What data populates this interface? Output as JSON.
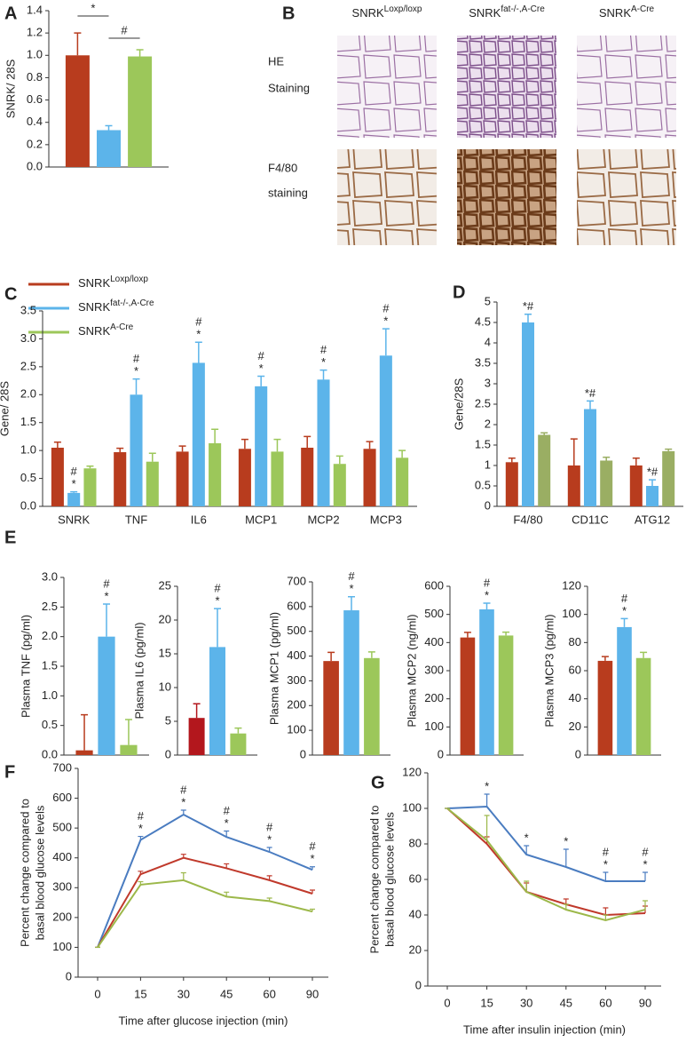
{
  "legend": [
    {
      "text": "SNRK",
      "sup": "Loxp/loxp",
      "color": "#b83c1e"
    },
    {
      "text": "SNRK",
      "sup": "fat-/-,A-Cre",
      "color": "#5cb4ea"
    },
    {
      "text": "SNRK",
      "sup": "A-Cre",
      "color": "#9cc75a"
    }
  ],
  "panel_b": {
    "label": "B",
    "columns": [
      {
        "text": "SNRK",
        "sup": "Loxp/loxp"
      },
      {
        "text": "SNRK",
        "sup": "fat-/-,A-Cre"
      },
      {
        "text": "SNRK",
        "sup": "A-Cre"
      }
    ],
    "rows": [
      [
        "HE",
        "Staining"
      ],
      [
        "F4/80",
        "staining"
      ]
    ]
  },
  "chart_data": [
    {
      "type": "bar",
      "label": "A",
      "ylabel": [
        "SNRK/ 28S"
      ],
      "categories": [
        null
      ],
      "ylim": [
        0,
        1.4
      ],
      "yticks": [
        {
          "value": 0,
          "label": "0.0"
        },
        0.2,
        0.4,
        0.6,
        0.8,
        {
          "value": 1,
          "label": "1.0"
        },
        1.2,
        1.4
      ],
      "series": [
        {
          "color": "#b83c1e",
          "values": [
            1.0
          ],
          "errors": [
            0.2
          ]
        },
        {
          "color": "#5cb4ea",
          "values": [
            0.33
          ],
          "errors": [
            0.04
          ]
        },
        {
          "color": "#9cc75a",
          "values": [
            0.99
          ],
          "errors": [
            0.06
          ]
        }
      ],
      "brackets": [
        {
          "text": "*",
          "from": 0,
          "to": 1
        },
        {
          "text": "#",
          "from": 1,
          "to": 2
        }
      ]
    },
    {
      "type": "bar",
      "label": "C",
      "ylabel": [
        "Gene/ 28S"
      ],
      "categories": [
        "SNRK",
        "TNF",
        "IL6",
        "MCP1",
        "MCP2",
        "MCP3"
      ],
      "ylim": [
        0,
        3.5
      ],
      "yticks": [
        {
          "value": 0,
          "label": "0.0"
        },
        0.5,
        {
          "value": 1,
          "label": "1.0"
        },
        1.5,
        {
          "value": 2,
          "label": "2.0"
        },
        2.5,
        {
          "value": 3,
          "label": "3.0"
        },
        3.5
      ],
      "series": [
        {
          "color": "#b83c1e",
          "values": [
            1.05,
            0.97,
            0.98,
            1.03,
            1.05,
            1.03
          ],
          "errors": [
            0.1,
            0.07,
            0.1,
            0.17,
            0.2,
            0.13
          ]
        },
        {
          "color": "#5cb4ea",
          "values": [
            0.24,
            2.0,
            2.57,
            2.15,
            2.27,
            2.7
          ],
          "errors": [
            0.02,
            0.28,
            0.37,
            0.18,
            0.17,
            0.48
          ]
        },
        {
          "color": "#9cc75a",
          "values": [
            0.68,
            0.8,
            1.13,
            0.98,
            0.76,
            0.87
          ],
          "errors": [
            0.04,
            0.15,
            0.25,
            0.22,
            0.14,
            0.13
          ]
        }
      ],
      "annotations": [
        {
          "series": 1,
          "index": 0,
          "lines": [
            "#",
            "*"
          ]
        },
        {
          "series": 1,
          "index": 1,
          "lines": [
            "#",
            "*"
          ]
        },
        {
          "series": 1,
          "index": 2,
          "lines": [
            "#",
            "*"
          ]
        },
        {
          "series": 1,
          "index": 3,
          "lines": [
            "#",
            "*"
          ]
        },
        {
          "series": 1,
          "index": 4,
          "lines": [
            "#",
            "*"
          ]
        },
        {
          "series": 1,
          "index": 5,
          "lines": [
            "#",
            "*"
          ]
        }
      ]
    },
    {
      "type": "bar",
      "label": "D",
      "ylabel": [
        "Gene/28S"
      ],
      "categories": [
        "F4/80",
        "CD11C",
        "ATG12"
      ],
      "ylim": [
        0,
        5
      ],
      "yticks": [
        0,
        0.5,
        1,
        1.5,
        2,
        2.5,
        3,
        3.5,
        4,
        4.5,
        5
      ],
      "series": [
        {
          "color": "#b83c1e",
          "values": [
            1.08,
            1.0,
            1.0
          ],
          "errors": [
            0.1,
            0.65,
            0.18
          ]
        },
        {
          "color": "#5cb4ea",
          "values": [
            4.5,
            2.38,
            0.5
          ],
          "errors": [
            0.2,
            0.2,
            0.15
          ]
        },
        {
          "color": "#9aae63",
          "values": [
            1.75,
            1.12,
            1.35
          ],
          "errors": [
            0.05,
            0.08,
            0.05
          ]
        }
      ],
      "annotations": [
        {
          "series": 1,
          "index": 0,
          "lines": [
            "*#"
          ]
        },
        {
          "series": 1,
          "index": 1,
          "lines": [
            "*#"
          ]
        },
        {
          "series": 1,
          "index": 2,
          "lines": [
            "*#"
          ]
        }
      ]
    },
    {
      "type": "bar",
      "label": "E",
      "ylabel": [
        "Plasma TNF (pg/ml)"
      ],
      "categories": [
        null
      ],
      "ylim": [
        0,
        3
      ],
      "yticks": [
        {
          "value": 0,
          "label": "0.0"
        },
        0.5,
        {
          "value": 1,
          "label": "1.0"
        },
        1.5,
        {
          "value": 2,
          "label": "2.0"
        },
        2.5,
        {
          "value": 3,
          "label": "3.0"
        }
      ],
      "series": [
        {
          "color": "#b83c1e",
          "values": [
            0.08
          ],
          "errors": [
            0.6
          ]
        },
        {
          "color": "#5cb4ea",
          "values": [
            2.0
          ],
          "errors": [
            0.55
          ]
        },
        {
          "color": "#9cc75a",
          "values": [
            0.17
          ],
          "errors": [
            0.43
          ]
        }
      ],
      "annotations": [
        {
          "series": 1,
          "index": 0,
          "lines": [
            "#",
            "*"
          ]
        }
      ]
    },
    {
      "type": "bar",
      "ylabel": [
        "Plasma IL6 (pg/ml)"
      ],
      "categories": [
        null
      ],
      "ylim": [
        0,
        25
      ],
      "yticks": [
        0,
        5,
        10,
        15,
        20,
        25
      ],
      "series": [
        {
          "color": "#b3171d",
          "values": [
            5.5
          ],
          "errors": [
            2.1
          ]
        },
        {
          "color": "#5cb4ea",
          "values": [
            16
          ],
          "errors": [
            5.7
          ]
        },
        {
          "color": "#9cc75a",
          "values": [
            3.2
          ],
          "errors": [
            0.8
          ]
        }
      ],
      "annotations": [
        {
          "series": 1,
          "index": 0,
          "lines": [
            "#",
            "*"
          ]
        }
      ]
    },
    {
      "type": "bar",
      "ylabel": [
        "Plasma MCP1 (pg/ml)"
      ],
      "categories": [
        null
      ],
      "ylim": [
        0,
        700
      ],
      "yticks": [
        0,
        100,
        200,
        300,
        400,
        500,
        600,
        700
      ],
      "series": [
        {
          "color": "#b83c1e",
          "values": [
            380
          ],
          "errors": [
            35
          ]
        },
        {
          "color": "#5cb4ea",
          "values": [
            585
          ],
          "errors": [
            55
          ]
        },
        {
          "color": "#9cc75a",
          "values": [
            392
          ],
          "errors": [
            25
          ]
        }
      ],
      "annotations": [
        {
          "series": 1,
          "index": 0,
          "lines": [
            "#",
            "*"
          ]
        }
      ]
    },
    {
      "type": "bar",
      "ylabel": [
        "Plasma MCP2 (ng/ml)"
      ],
      "categories": [
        null
      ],
      "ylim": [
        0,
        600
      ],
      "yticks": [
        0,
        100,
        200,
        300,
        400,
        500,
        600
      ],
      "series": [
        {
          "color": "#b83c1e",
          "values": [
            418
          ],
          "errors": [
            18
          ]
        },
        {
          "color": "#5cb4ea",
          "values": [
            518
          ],
          "errors": [
            22
          ]
        },
        {
          "color": "#9cc75a",
          "values": [
            425
          ],
          "errors": [
            12
          ]
        }
      ],
      "annotations": [
        {
          "series": 1,
          "index": 0,
          "lines": [
            "#",
            "*"
          ]
        }
      ]
    },
    {
      "type": "bar",
      "ylabel": [
        "Plasma MCP3 (pg/ml)"
      ],
      "categories": [
        null
      ],
      "ylim": [
        0,
        120
      ],
      "yticks": [
        0,
        20,
        40,
        60,
        80,
        100,
        120
      ],
      "series": [
        {
          "color": "#b83c1e",
          "values": [
            67
          ],
          "errors": [
            3
          ]
        },
        {
          "color": "#5cb4ea",
          "values": [
            91
          ],
          "errors": [
            6
          ]
        },
        {
          "color": "#9cc75a",
          "values": [
            69
          ],
          "errors": [
            4
          ]
        }
      ],
      "annotations": [
        {
          "series": 1,
          "index": 0,
          "lines": [
            "#",
            "*"
          ]
        }
      ]
    },
    {
      "type": "line",
      "label": "F",
      "ylabel": [
        "Percent change compared to",
        "basal blood glucose levels"
      ],
      "xlabel": "Time after glucose injection (min)",
      "categories": [
        "0",
        "15",
        "30",
        "45",
        "60",
        "90"
      ],
      "ylim": [
        0,
        700
      ],
      "yticks": [
        0,
        100,
        200,
        300,
        400,
        500,
        600,
        700
      ],
      "series": [
        {
          "color": "#4a7cc0",
          "values": [
            100,
            460,
            545,
            470,
            420,
            360
          ],
          "errors": [
            0,
            12,
            15,
            20,
            15,
            10
          ]
        },
        {
          "color": "#c0392b",
          "values": [
            100,
            345,
            400,
            365,
            325,
            280
          ],
          "errors": [
            0,
            10,
            12,
            15,
            15,
            12
          ]
        },
        {
          "color": "#9cb84a",
          "values": [
            100,
            310,
            325,
            270,
            255,
            220
          ],
          "errors": [
            0,
            10,
            25,
            15,
            10,
            8
          ]
        }
      ],
      "annotations": [
        {
          "series": 0,
          "index": 1,
          "lines": [
            "#",
            "*"
          ]
        },
        {
          "series": 0,
          "index": 2,
          "lines": [
            "#",
            "*"
          ]
        },
        {
          "series": 0,
          "index": 3,
          "lines": [
            "#",
            "*"
          ]
        },
        {
          "series": 0,
          "index": 4,
          "lines": [
            "#",
            "*"
          ]
        },
        {
          "series": 0,
          "index": 5,
          "lines": [
            "#",
            "*"
          ]
        }
      ]
    },
    {
      "type": "line",
      "label": "G",
      "ylabel": [
        "Percent change compared to",
        "basal blood glucose levels"
      ],
      "xlabel": "Time after insulin injection (min)",
      "categories": [
        "0",
        "15",
        "30",
        "45",
        "60",
        "90"
      ],
      "ylim": [
        0,
        120
      ],
      "yticks": [
        0,
        20,
        40,
        60,
        80,
        100,
        120
      ],
      "series": [
        {
          "color": "#4a7cc0",
          "values": [
            100,
            101,
            74,
            67,
            59,
            59
          ],
          "errors": [
            0,
            7,
            5,
            10,
            5,
            5
          ]
        },
        {
          "color": "#c0392b",
          "values": [
            100,
            80,
            53,
            46,
            40,
            41
          ],
          "errors": [
            0,
            4,
            5,
            3,
            4,
            4
          ]
        },
        {
          "color": "#9cb84a",
          "values": [
            100,
            82,
            53,
            43,
            37,
            43
          ],
          "errors": [
            0,
            14,
            6,
            3,
            3,
            5
          ]
        }
      ],
      "annotations": [
        {
          "series": 0,
          "index": 1,
          "lines": [
            "*"
          ]
        },
        {
          "series": 0,
          "index": 2,
          "lines": [
            "*"
          ]
        },
        {
          "series": 0,
          "index": 3,
          "lines": [
            "*"
          ]
        },
        {
          "series": 0,
          "index": 4,
          "lines": [
            "#",
            "*"
          ]
        },
        {
          "series": 0,
          "index": 5,
          "lines": [
            "#",
            "*"
          ]
        }
      ]
    }
  ]
}
